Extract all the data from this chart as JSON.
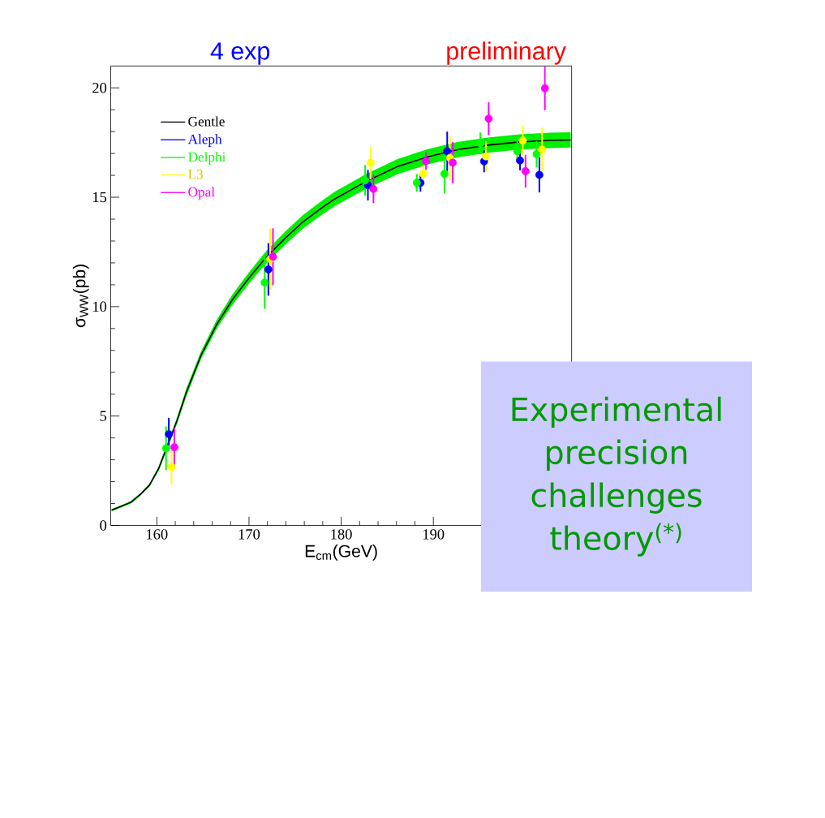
{
  "chart_data": {
    "type": "scatter",
    "title": "4 exp",
    "subtitle": "preliminary",
    "xlabel": "E$_{cm}$(GeV)",
    "ylabel": "σ$_{WW}$(pb)",
    "xlim": [
      155,
      205
    ],
    "ylim": [
      0,
      21
    ],
    "xticks": [
      160,
      170,
      180,
      190
    ],
    "yticks": [
      0,
      5,
      10,
      15,
      20
    ],
    "legend": "top left",
    "grid": false,
    "annotations": [
      "Experimental precision challenges theory$^{(*)}$"
    ],
    "series": [
      {
        "name": "Gentle",
        "type": "line",
        "marker": "none",
        "color": "#000000",
        "x": [
          155.1,
          156.0,
          157.2,
          158.2,
          159.2,
          160.2,
          162.2,
          163.2,
          164.8,
          166.5,
          168.2,
          170.0,
          171.8,
          173.8,
          175.8,
          177.8,
          179.3,
          182.7,
          186.1,
          189.4,
          192.7,
          196.1,
          199.4,
          202.7,
          204.9
        ],
        "values": [
          0.7,
          0.85,
          1.06,
          1.41,
          1.84,
          2.6,
          4.8,
          6.08,
          7.78,
          9.19,
          10.32,
          11.31,
          12.23,
          13.08,
          13.86,
          14.49,
          14.92,
          15.72,
          16.4,
          16.85,
          17.18,
          17.39,
          17.53,
          17.6,
          17.62
        ],
        "lower": [
          0.65,
          0.8,
          1.0,
          1.35,
          1.77,
          2.5,
          4.65,
          5.9,
          7.6,
          8.98,
          10.08,
          11.05,
          11.95,
          12.78,
          13.55,
          14.17,
          14.59,
          15.38,
          16.05,
          16.5,
          16.83,
          17.04,
          17.18,
          17.25,
          17.27
        ],
        "upper": [
          0.75,
          0.9,
          1.12,
          1.47,
          1.91,
          2.7,
          4.95,
          6.26,
          7.96,
          9.4,
          10.56,
          11.57,
          12.51,
          13.38,
          14.17,
          14.81,
          15.25,
          16.06,
          16.75,
          17.2,
          17.53,
          17.74,
          17.88,
          17.95,
          17.97
        ]
      },
      {
        "name": "Aleph",
        "marker": "circle",
        "color": "#0000ff",
        "x": [
          161.3,
          172.1,
          182.9,
          188.6,
          191.5,
          195.5,
          199.4,
          201.5
        ],
        "values": [
          4.17,
          11.7,
          15.55,
          15.66,
          17.1,
          16.64,
          16.68,
          16.02
        ],
        "errors": [
          0.75,
          1.2,
          0.7,
          0.4,
          0.9,
          0.5,
          0.45,
          0.8
        ]
      },
      {
        "name": "Delphi",
        "marker": "circle",
        "color": "#00ff00",
        "x": [
          161.0,
          171.7,
          182.6,
          188.2,
          191.2,
          195.1,
          199.1,
          201.2
        ],
        "values": [
          3.53,
          11.1,
          15.77,
          15.66,
          16.07,
          17.46,
          17.1,
          16.97
        ],
        "errors": [
          1.0,
          1.2,
          0.7,
          0.4,
          0.9,
          0.5,
          0.5,
          0.6
        ]
      },
      {
        "name": "L3",
        "marker": "circle",
        "color": "#ffff00",
        "x": [
          161.6,
          172.3,
          183.2,
          188.9,
          191.8,
          195.7,
          199.7,
          201.8
        ],
        "values": [
          2.68,
          12.17,
          16.57,
          16.07,
          16.8,
          16.87,
          17.59,
          17.18
        ],
        "errors": [
          0.8,
          1.4,
          0.75,
          0.4,
          1.0,
          0.7,
          0.7,
          1.0
        ]
      },
      {
        "name": "Opal",
        "marker": "circle",
        "color": "#ff00ff",
        "x": [
          161.9,
          172.6,
          183.5,
          189.2,
          192.1,
          196.0,
          200.0,
          202.1
        ],
        "values": [
          3.57,
          12.28,
          15.38,
          16.65,
          16.58,
          18.59,
          16.19,
          19.98
        ],
        "errors": [
          0.9,
          1.3,
          0.65,
          0.4,
          0.95,
          0.75,
          0.75,
          1.0
        ]
      }
    ]
  }
}
